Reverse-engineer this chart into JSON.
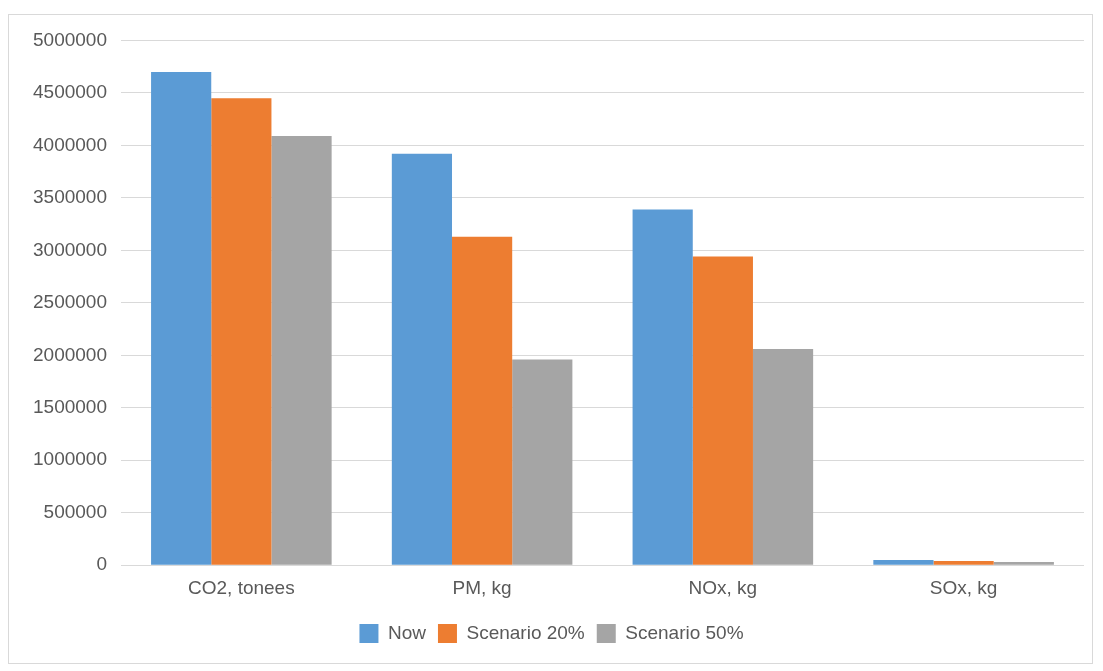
{
  "chart_data": {
    "type": "bar",
    "categories": [
      "CO2, tonees",
      "PM, kg",
      "NOx, kg",
      "SOx, kg"
    ],
    "series": [
      {
        "name": "Now",
        "color": "#5b9bd5",
        "values": [
          4700000,
          3920000,
          3390000,
          50000
        ]
      },
      {
        "name": "Scenario 20%",
        "color": "#ed7d31",
        "values": [
          4450000,
          3130000,
          2940000,
          40000
        ]
      },
      {
        "name": "Scenario 50%",
        "color": "#a5a5a5",
        "values": [
          4090000,
          1960000,
          2060000,
          30000
        ]
      }
    ],
    "ylim": [
      0,
      5000000
    ],
    "yticks": [
      0,
      500000,
      1000000,
      1500000,
      2000000,
      2500000,
      3000000,
      3500000,
      4000000,
      4500000,
      5000000
    ],
    "grid": "y",
    "legend": "bottom"
  }
}
